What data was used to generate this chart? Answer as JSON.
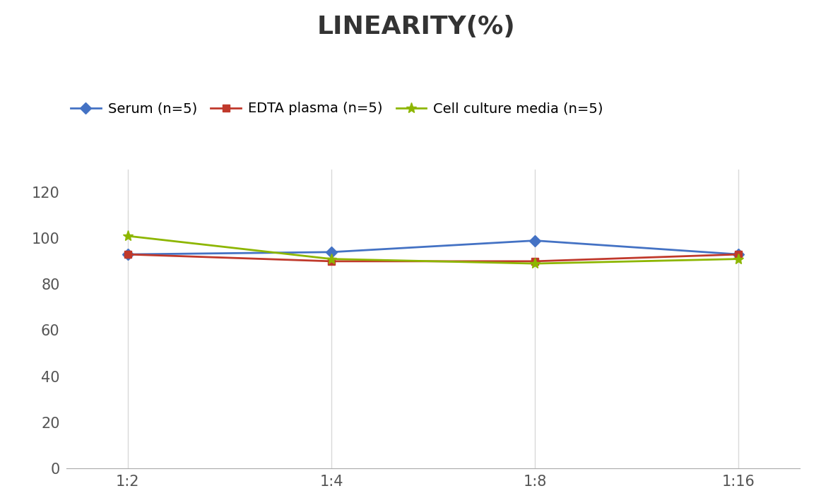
{
  "title": "LINEARITY(%)",
  "x_labels": [
    "1:2",
    "1:4",
    "1:8",
    "1:16"
  ],
  "series": [
    {
      "label": "Serum (n=5)",
      "values": [
        93,
        94,
        99,
        93
      ],
      "color": "#4472C4",
      "marker": "D",
      "marker_size": 8,
      "linewidth": 2.0
    },
    {
      "label": "EDTA plasma (n=5)",
      "values": [
        93,
        90,
        90,
        93
      ],
      "color": "#C0392B",
      "marker": "s",
      "marker_size": 7,
      "linewidth": 2.0
    },
    {
      "label": "Cell culture media (n=5)",
      "values": [
        101,
        91,
        89,
        91
      ],
      "color": "#8DB600",
      "marker": "*",
      "marker_size": 11,
      "linewidth": 2.0
    }
  ],
  "ylim": [
    0,
    130
  ],
  "yticks": [
    0,
    20,
    40,
    60,
    80,
    100,
    120
  ],
  "background_color": "#ffffff",
  "grid_color": "#d9d9d9",
  "title_fontsize": 26,
  "tick_fontsize": 15,
  "legend_fontsize": 14
}
